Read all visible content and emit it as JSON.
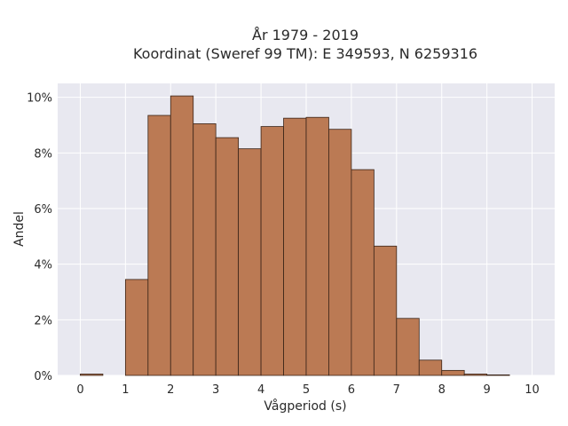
{
  "chart_data": {
    "type": "bar",
    "title_line1": "År 1979 - 2019",
    "title_line2": "Koordinat (Sweref 99 TM): E 349593, N 6259316",
    "xlabel": "Vågperiod (s)",
    "ylabel": "Andel",
    "bin_width": 0.5,
    "bins": [
      {
        "start": 0.0,
        "value": 0.05
      },
      {
        "start": 0.5,
        "value": 0.0
      },
      {
        "start": 1.0,
        "value": 3.45
      },
      {
        "start": 1.5,
        "value": 9.35
      },
      {
        "start": 2.0,
        "value": 10.05
      },
      {
        "start": 2.5,
        "value": 9.05
      },
      {
        "start": 3.0,
        "value": 8.55
      },
      {
        "start": 3.5,
        "value": 8.15
      },
      {
        "start": 4.0,
        "value": 8.95
      },
      {
        "start": 4.5,
        "value": 9.25
      },
      {
        "start": 5.0,
        "value": 9.28
      },
      {
        "start": 5.5,
        "value": 8.85
      },
      {
        "start": 6.0,
        "value": 7.4
      },
      {
        "start": 6.5,
        "value": 4.65
      },
      {
        "start": 7.0,
        "value": 2.05
      },
      {
        "start": 7.5,
        "value": 0.55
      },
      {
        "start": 8.0,
        "value": 0.18
      },
      {
        "start": 8.5,
        "value": 0.05
      },
      {
        "start": 9.0,
        "value": 0.02
      },
      {
        "start": 9.5,
        "value": 0.0
      }
    ],
    "xlim": [
      -0.5,
      10.5
    ],
    "ylim": [
      0,
      10.5
    ],
    "xticks": [
      "0",
      "1",
      "2",
      "3",
      "4",
      "5",
      "6",
      "7",
      "8",
      "9",
      "10"
    ],
    "yticks": [
      "0%",
      "2%",
      "4%",
      "6%",
      "8%",
      "10%"
    ],
    "grid": true,
    "colors": {
      "bar_fill": "#bb7a54",
      "bar_edge": "#3a2418",
      "plot_bg": "#e8e8f0",
      "grid": "#ffffff"
    }
  }
}
